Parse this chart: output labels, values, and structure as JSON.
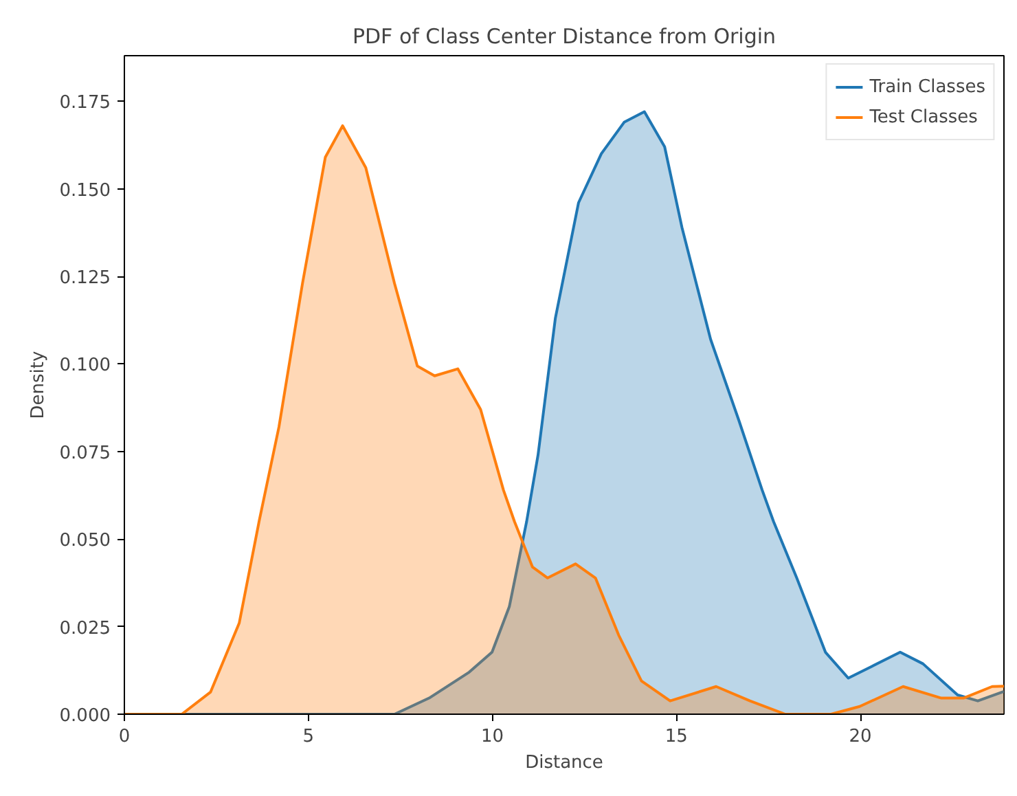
{
  "chart_data": {
    "type": "area",
    "title": "PDF of Class Center Distance from Origin",
    "xlabel": "Distance",
    "ylabel": "Density",
    "xlim": [
      0,
      23.9
    ],
    "ylim": [
      0,
      0.188
    ],
    "xticks": [
      0,
      5,
      10,
      15,
      20
    ],
    "yticks": [
      {
        "value": 0,
        "label": "0.000"
      },
      {
        "value": 0.025,
        "label": "0.025"
      },
      {
        "value": 0.05,
        "label": "0.050"
      },
      {
        "value": 0.075,
        "label": "0.075"
      },
      {
        "value": 0.1,
        "label": "0.100"
      },
      {
        "value": 0.125,
        "label": "0.125"
      },
      {
        "value": 0.15,
        "label": "0.150"
      },
      {
        "value": 0.175,
        "label": "0.175"
      }
    ],
    "grid": false,
    "legend": "top right",
    "series": [
      {
        "name": "Train Classes",
        "color": "#1f77b4",
        "x": [
          0,
          7.34,
          8.28,
          9.37,
          9.99,
          10.46,
          10.93,
          11.24,
          11.71,
          12.34,
          12.96,
          13.58,
          14.13,
          14.68,
          15.15,
          15.93,
          16.7,
          17.33,
          17.64,
          18.27,
          19.05,
          19.67,
          20.3,
          21.08,
          21.7,
          22.64,
          23.19,
          23.9
        ],
        "values": [
          0,
          0,
          0.0046,
          0.012,
          0.0177,
          0.0307,
          0.055,
          0.074,
          0.113,
          0.146,
          0.16,
          0.169,
          0.172,
          0.162,
          0.139,
          0.107,
          0.0838,
          0.064,
          0.055,
          0.0389,
          0.0177,
          0.0103,
          0.0136,
          0.0177,
          0.0144,
          0.0055,
          0.0038,
          0.0065
        ]
      },
      {
        "name": "Test Classes",
        "color": "#ff7f0e",
        "x": [
          0,
          1.56,
          2.34,
          3.12,
          3.66,
          4.2,
          4.84,
          5.46,
          5.93,
          6.56,
          7.34,
          7.96,
          8.43,
          9.06,
          9.68,
          10.3,
          10.6,
          11.09,
          11.5,
          12.26,
          12.8,
          13.43,
          14.05,
          14.83,
          16.08,
          17.0,
          17.96,
          19.2,
          19.98,
          21.16,
          22.2,
          22.8,
          23.58,
          23.9
        ],
        "values": [
          0,
          0,
          0.0063,
          0.026,
          0.055,
          0.082,
          0.123,
          0.159,
          0.168,
          0.156,
          0.123,
          0.0994,
          0.0966,
          0.0986,
          0.087,
          0.064,
          0.055,
          0.042,
          0.0389,
          0.0429,
          0.0389,
          0.0226,
          0.0095,
          0.0038,
          0.0079,
          0.0038,
          0,
          0,
          0.0022,
          0.0079,
          0.0046,
          0.0046,
          0.0079,
          0.008
        ]
      }
    ]
  }
}
